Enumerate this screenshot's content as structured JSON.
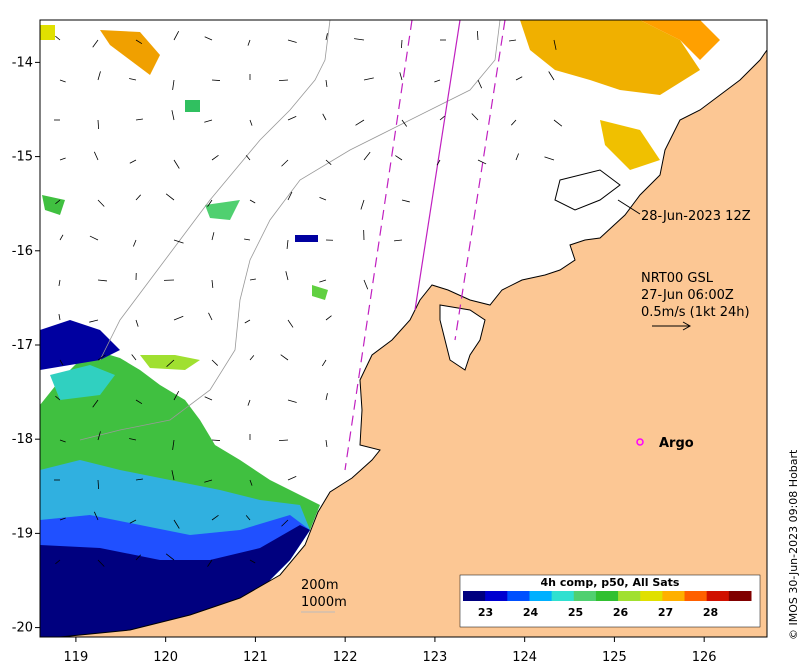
{
  "map": {
    "x_ticks": [
      "119",
      "120",
      "121",
      "122",
      "123",
      "124",
      "125",
      "126"
    ],
    "y_ticks": [
      "-14",
      "-15",
      "-16",
      "-17",
      "-18",
      "-19",
      "-20"
    ],
    "lon_range": [
      118.6,
      126.7
    ],
    "lat_range": [
      -20.1,
      -13.55
    ]
  },
  "annotations": {
    "date_label": "28-Jun-2023 12Z",
    "current_title": "NRT00 GSL",
    "current_time": "27-Jun 06:00Z",
    "current_scale": "0.5m/s (1kt 24h)",
    "argo_label": "Argo",
    "contour_200": "200m",
    "contour_1000": "1000m",
    "credit": "© IMOS 30-Jun-2023 09:08 Hobart"
  },
  "colorbar": {
    "title": "4h comp, p50, All Sats",
    "labels": [
      "23",
      "24",
      "25",
      "26",
      "27",
      "28"
    ],
    "range": [
      22.5,
      28.9
    ],
    "colors": [
      "#00007f",
      "#0000d0",
      "#0050ff",
      "#00b0ff",
      "#30e0d0",
      "#50d070",
      "#30c030",
      "#a0e030",
      "#e0e000",
      "#ffb000",
      "#ff6000",
      "#d01000",
      "#800000"
    ]
  },
  "colors": {
    "land": "#fcc794",
    "ocean_nodata": "#ffffff",
    "track": "#c020c0",
    "argo": "#ff00ff"
  }
}
